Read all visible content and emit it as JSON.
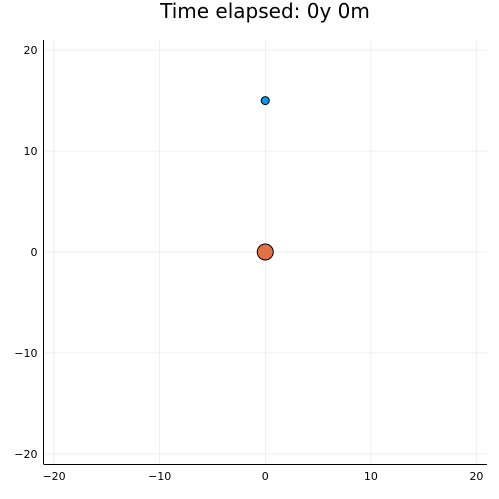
{
  "chart_data": {
    "type": "scatter",
    "title": "Time elapsed: 0y 0m",
    "xlim": [
      -21,
      21
    ],
    "ylim": [
      -21,
      21
    ],
    "xticks": [
      -20,
      -10,
      0,
      10,
      20
    ],
    "yticks": [
      -20,
      -10,
      0,
      10,
      20
    ],
    "xtick_labels": [
      "−20",
      "−10",
      "0",
      "10",
      "20"
    ],
    "ytick_labels": [
      "−20",
      "−10",
      "0",
      "10",
      "20"
    ],
    "grid": true,
    "legend": false,
    "series": [
      {
        "x": [
          0
        ],
        "y": [
          15
        ],
        "color": "#009af9",
        "marker_size": "small"
      },
      {
        "x": [
          0
        ],
        "y": [
          0
        ],
        "color": "#e26f46",
        "marker_size": "large"
      }
    ]
  }
}
